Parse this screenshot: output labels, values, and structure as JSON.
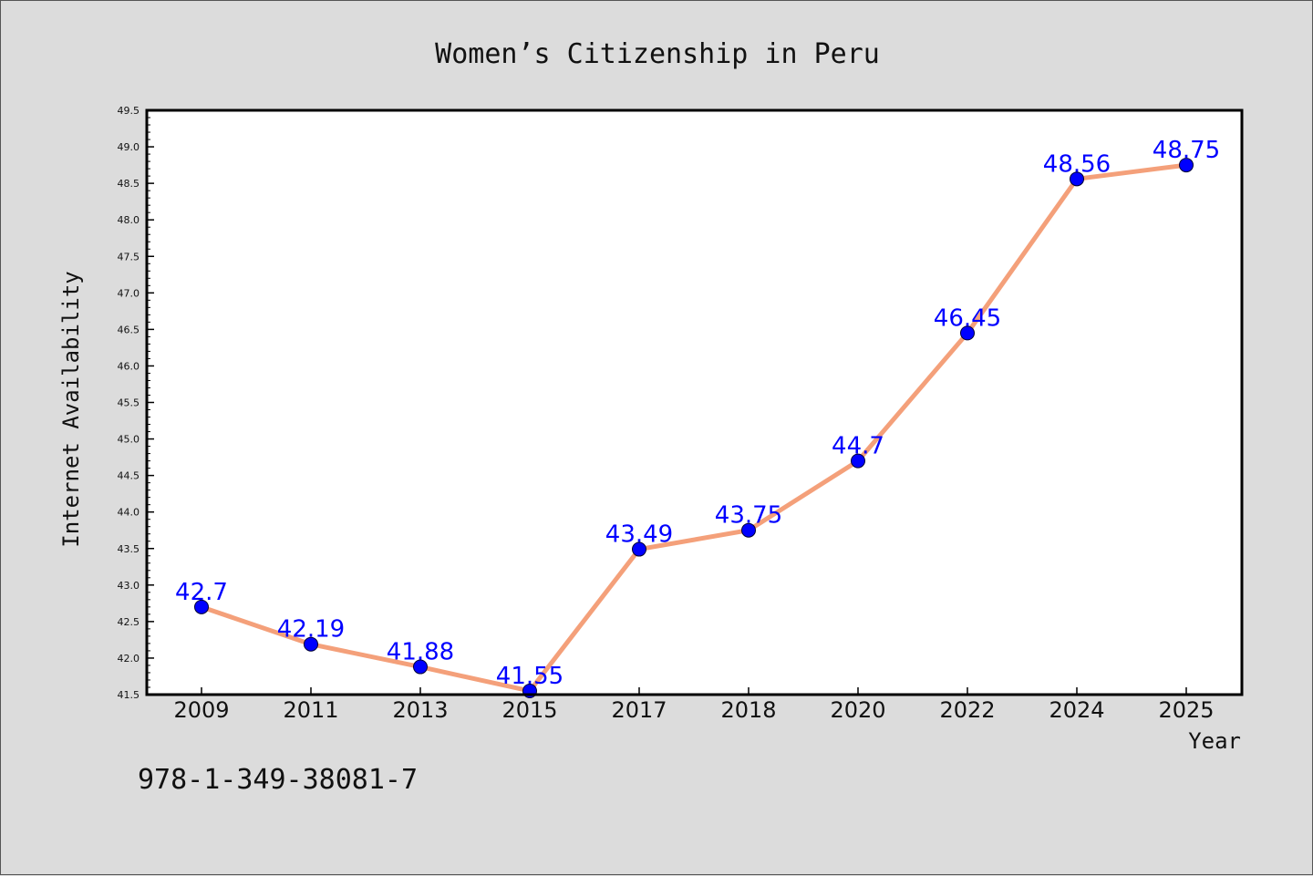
{
  "chart_data": {
    "type": "line",
    "title": "Women’s Citizenship in Peru",
    "xlabel": "Year",
    "ylabel": "Internet Availability",
    "categories": [
      "2009",
      "2011",
      "2013",
      "2015",
      "2017",
      "2018",
      "2020",
      "2022",
      "2024",
      "2025"
    ],
    "series": [
      {
        "values": [
          42.7,
          42.19,
          41.88,
          41.55,
          43.49,
          43.75,
          44.7,
          46.45,
          48.56,
          48.75
        ],
        "data_labels": [
          "42.7",
          "42.19",
          "41.88",
          "41.55",
          "43.49",
          "43.75",
          "44.7",
          "46.45",
          "48.56",
          "48.75"
        ],
        "line_color": "#f4a07a",
        "marker_color": "#0000ff",
        "label_color": "#0000ff"
      }
    ],
    "ylim": [
      41.5,
      49.5
    ],
    "y_ticks": [
      "41.5",
      "42.0",
      "42.5",
      "43.0",
      "43.5",
      "44.0",
      "44.5",
      "45.0",
      "45.5",
      "46.0",
      "46.5",
      "47.0",
      "47.5",
      "48.0",
      "48.5",
      "49.0",
      "49.5"
    ],
    "grid": false,
    "legend": "none"
  },
  "footnote": "978-1-349-38081-7"
}
